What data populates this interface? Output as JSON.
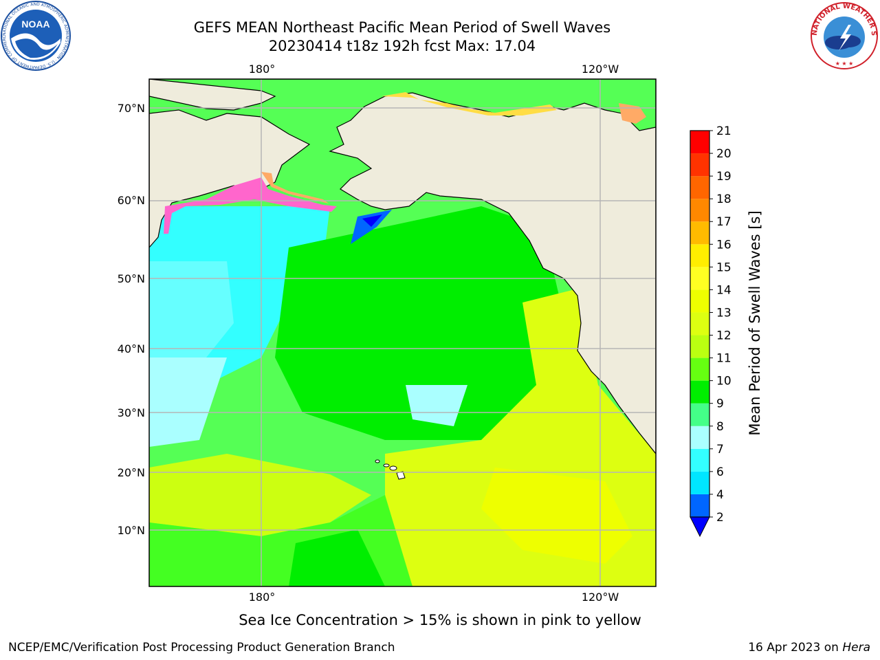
{
  "header": {
    "title_line1": "GEFS MEAN Northeast Pacific Mean Period of Swell Waves",
    "title_line2": "20230414 t18z 192h fcst   Max: 17.04"
  },
  "logos": {
    "noaa_text": "NOAA",
    "noaa_ring_text": "NATIONAL OCEANIC AND ATMOSPHERIC ADMINISTRATION · U.S. DEPARTMENT OF COMMERCE",
    "nws_ring_text": "NATIONAL WEATHER SERVICE"
  },
  "map": {
    "lon_labels": [
      "180°",
      "120°W"
    ],
    "lat_labels": [
      "70°N",
      "60°N",
      "50°N",
      "40°N",
      "30°N",
      "20°N",
      "10°N"
    ],
    "colors": {
      "land": "#efecdc",
      "grid": "#b5b5b5",
      "coast": "#000000",
      "ice": [
        "#ff66cc",
        "#ffaa66",
        "#ffdd44"
      ]
    }
  },
  "colorbar": {
    "title": "Mean Period of Swell Waves [s]",
    "ticks": [
      "2",
      "4",
      "6",
      "7",
      "8",
      "9",
      "10",
      "11",
      "12",
      "13",
      "14",
      "15",
      "16",
      "17",
      "18",
      "19",
      "20",
      "21"
    ],
    "colors": [
      "#0066ff",
      "#00e6ff",
      "#33ffff",
      "#aaffff",
      "#44ff88",
      "#00ee00",
      "#66ff11",
      "#bbff11",
      "#ddff11",
      "#eeff00",
      "#ffff22",
      "#ffee00",
      "#ffbb00",
      "#ff8800",
      "#ff6600",
      "#ff3300",
      "#ff0000"
    ],
    "extend_color": "#0000ff"
  },
  "notes": {
    "ice_note": "Sea Ice Concentration > 15% is shown in pink to yellow"
  },
  "footer": {
    "left": "NCEP/EMC/Verification Post Processing Product Generation Branch",
    "right_date": "16 Apr 2023 on",
    "right_machine": "Hera"
  }
}
